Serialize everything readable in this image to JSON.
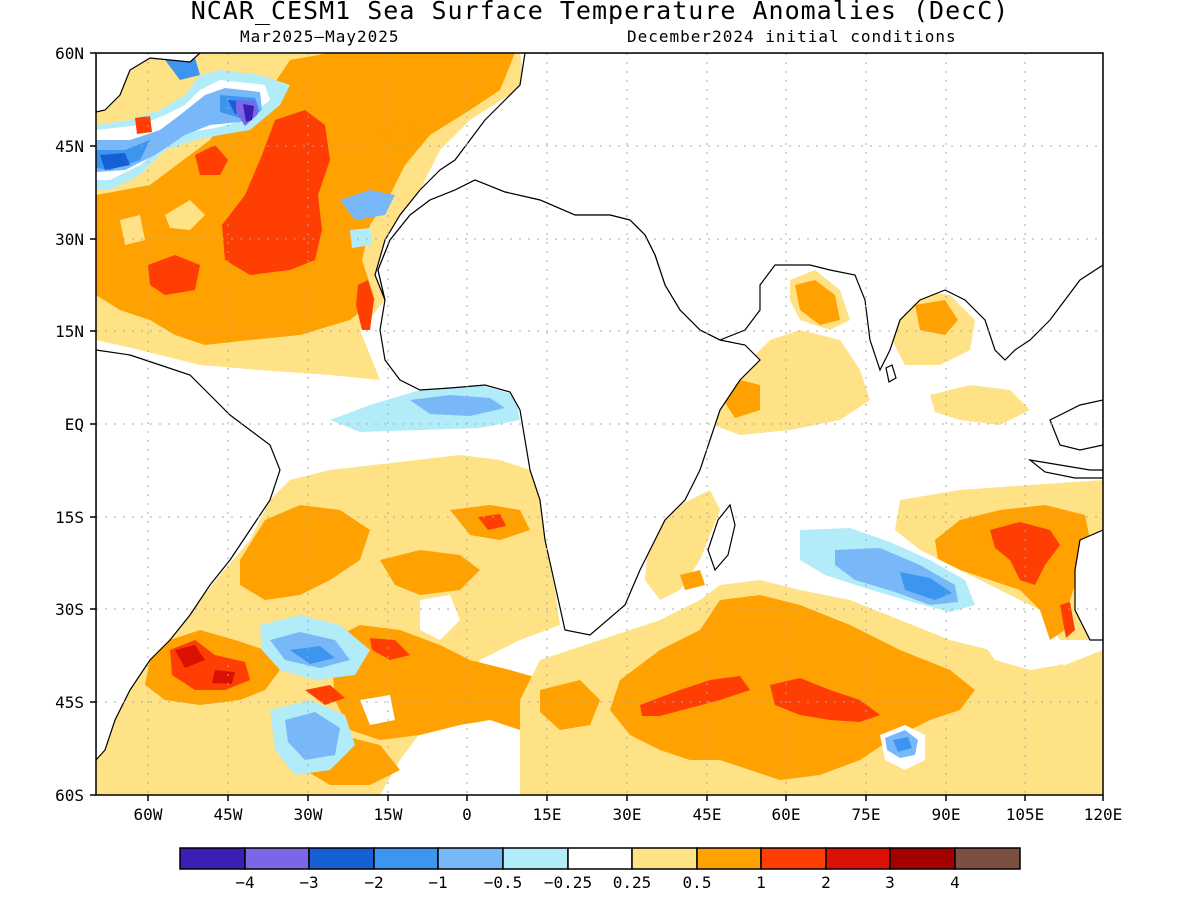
{
  "title": "NCAR_CESM1 Sea Surface Temperature Anomalies (DecC)",
  "period": "Mar2025—May2025",
  "init": "December2024 initial conditions",
  "lat_labels": [
    "60N",
    "45N",
    "30N",
    "15N",
    "EQ",
    "15S",
    "30S",
    "45S",
    "60S"
  ],
  "lon_labels": [
    "60W",
    "45W",
    "30W",
    "15W",
    "0",
    "15E",
    "30E",
    "45E",
    "60E",
    "75E",
    "90E",
    "105E",
    "120E"
  ],
  "colorbar": {
    "colors": [
      "#3b1fb4",
      "#7a67e8",
      "#1660d4",
      "#3c96f0",
      "#78b8f8",
      "#b2ecf8",
      "#ffffff",
      "#fee285",
      "#ffa100",
      "#ff3e04",
      "#db1104",
      "#a40000",
      "#7b4f41"
    ],
    "labels": [
      "−4",
      "−3",
      "−2",
      "−1",
      "−0.5",
      "−0.25",
      "0.25",
      "0.5",
      "1",
      "2",
      "3",
      "4"
    ]
  },
  "colors": {
    "land": "#ffffff",
    "coast": "#000000",
    "grid": "#aaaaaa"
  }
}
